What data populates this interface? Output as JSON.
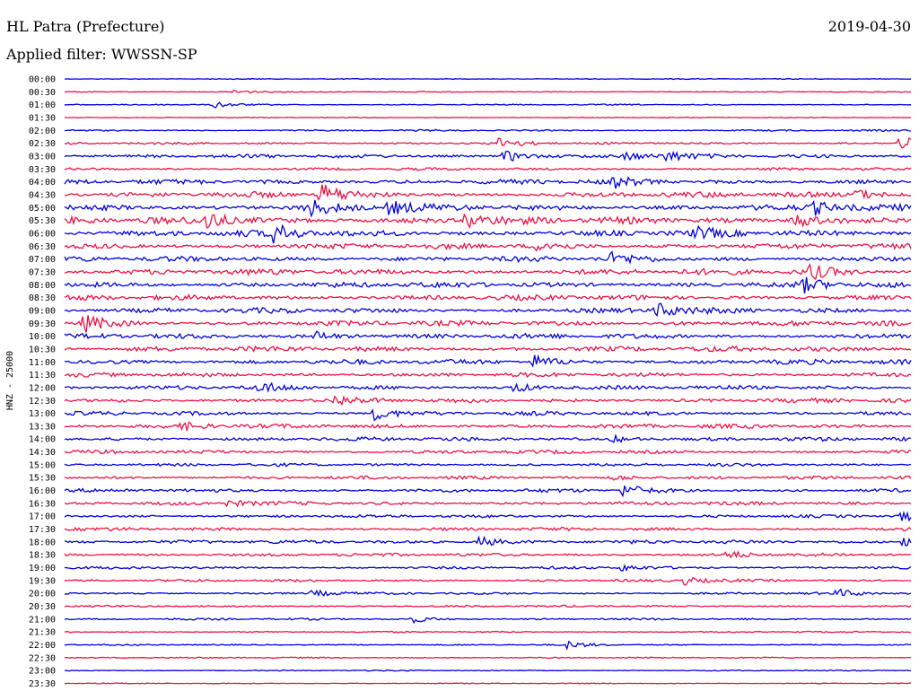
{
  "header": {
    "station": "HL Patra (Prefecture)",
    "date": "2019-04-30",
    "filter": "Applied filter: WWSSN-SP"
  },
  "chart_data": {
    "type": "line",
    "title": "HL Patra (Prefecture)",
    "ylabel": "HNZ - 25000",
    "row_labels": [
      "00:00",
      "00:30",
      "01:00",
      "01:30",
      "02:00",
      "02:30",
      "03:00",
      "03:30",
      "04:00",
      "04:30",
      "05:00",
      "05:30",
      "06:00",
      "06:30",
      "07:00",
      "07:30",
      "08:00",
      "08:30",
      "09:00",
      "09:30",
      "10:00",
      "10:30",
      "11:00",
      "11:30",
      "12:00",
      "12:30",
      "13:00",
      "13:30",
      "14:00",
      "14:30",
      "15:00",
      "15:30",
      "16:00",
      "16:30",
      "17:00",
      "17:30",
      "18:00",
      "18:30",
      "19:00",
      "19:30",
      "20:00",
      "20:30",
      "21:00",
      "21:30",
      "22:00",
      "22:30",
      "23:00",
      "23:30"
    ],
    "series_colors": [
      "#0000dd",
      "#ee1144"
    ],
    "noise_level": [
      0.5,
      0.6,
      0.7,
      0.5,
      1.0,
      1.4,
      2.2,
      1.6,
      3.0,
      3.4,
      3.8,
      4.2,
      3.8,
      3.4,
      3.2,
      3.6,
      3.4,
      3.2,
      3.2,
      3.2,
      3.0,
      3.2,
      3.0,
      2.6,
      2.6,
      2.6,
      2.4,
      2.6,
      2.4,
      2.2,
      1.8,
      2.0,
      2.2,
      2.2,
      1.8,
      2.0,
      2.2,
      2.0,
      1.6,
      1.6,
      1.4,
      1.2,
      1.2,
      0.9,
      0.8,
      0.8,
      0.7,
      0.5
    ],
    "events": [
      {
        "row": 1,
        "minute": 6.0,
        "amp": 3
      },
      {
        "row": 2,
        "minute": 5.3,
        "amp": 4
      },
      {
        "row": 5,
        "minute": 15.4,
        "amp": 6
      },
      {
        "row": 5,
        "minute": 29.6,
        "amp": 9
      },
      {
        "row": 6,
        "minute": 15.6,
        "amp": 7
      },
      {
        "row": 6,
        "minute": 19.9,
        "amp": 5
      },
      {
        "row": 6,
        "minute": 21.3,
        "amp": 5
      },
      {
        "row": 8,
        "minute": 19.5,
        "amp": 5
      },
      {
        "row": 9,
        "minute": 9.1,
        "amp": 12
      },
      {
        "row": 9,
        "minute": 28.0,
        "amp": 6
      },
      {
        "row": 10,
        "minute": 8.6,
        "amp": 10
      },
      {
        "row": 10,
        "minute": 11.5,
        "amp": 8
      },
      {
        "row": 10,
        "minute": 26.6,
        "amp": 7
      },
      {
        "row": 11,
        "minute": 5.0,
        "amp": 11
      },
      {
        "row": 11,
        "minute": 14.2,
        "amp": 8
      },
      {
        "row": 11,
        "minute": 25.8,
        "amp": 10
      },
      {
        "row": 12,
        "minute": 7.4,
        "amp": 11
      },
      {
        "row": 12,
        "minute": 22.4,
        "amp": 5
      },
      {
        "row": 13,
        "minute": 16.8,
        "amp": 6
      },
      {
        "row": 14,
        "minute": 19.4,
        "amp": 6
      },
      {
        "row": 15,
        "minute": 26.4,
        "amp": 8
      },
      {
        "row": 16,
        "minute": 26.2,
        "amp": 7
      },
      {
        "row": 18,
        "minute": 21.0,
        "amp": 9
      },
      {
        "row": 19,
        "minute": 0.7,
        "amp": 10
      },
      {
        "row": 20,
        "minute": 8.9,
        "amp": 5
      },
      {
        "row": 22,
        "minute": 16.6,
        "amp": 7
      },
      {
        "row": 24,
        "minute": 6.9,
        "amp": 5
      },
      {
        "row": 24,
        "minute": 15.9,
        "amp": 5
      },
      {
        "row": 25,
        "minute": 9.6,
        "amp": 5
      },
      {
        "row": 26,
        "minute": 11.0,
        "amp": 8
      },
      {
        "row": 27,
        "minute": 4.2,
        "amp": 4
      },
      {
        "row": 28,
        "minute": 19.4,
        "amp": 4
      },
      {
        "row": 31,
        "minute": 19.4,
        "amp": 4
      },
      {
        "row": 32,
        "minute": 19.8,
        "amp": 7
      },
      {
        "row": 33,
        "minute": 5.8,
        "amp": 4
      },
      {
        "row": 34,
        "minute": 29.7,
        "amp": 5
      },
      {
        "row": 36,
        "minute": 14.7,
        "amp": 6
      },
      {
        "row": 36,
        "minute": 29.7,
        "amp": 5
      },
      {
        "row": 37,
        "minute": 23.5,
        "amp": 4
      },
      {
        "row": 38,
        "minute": 19.7,
        "amp": 4
      },
      {
        "row": 39,
        "minute": 21.9,
        "amp": 5
      },
      {
        "row": 40,
        "minute": 8.8,
        "amp": 4
      },
      {
        "row": 40,
        "minute": 27.4,
        "amp": 4
      },
      {
        "row": 42,
        "minute": 12.3,
        "amp": 4
      },
      {
        "row": 44,
        "minute": 17.8,
        "amp": 4
      }
    ]
  }
}
